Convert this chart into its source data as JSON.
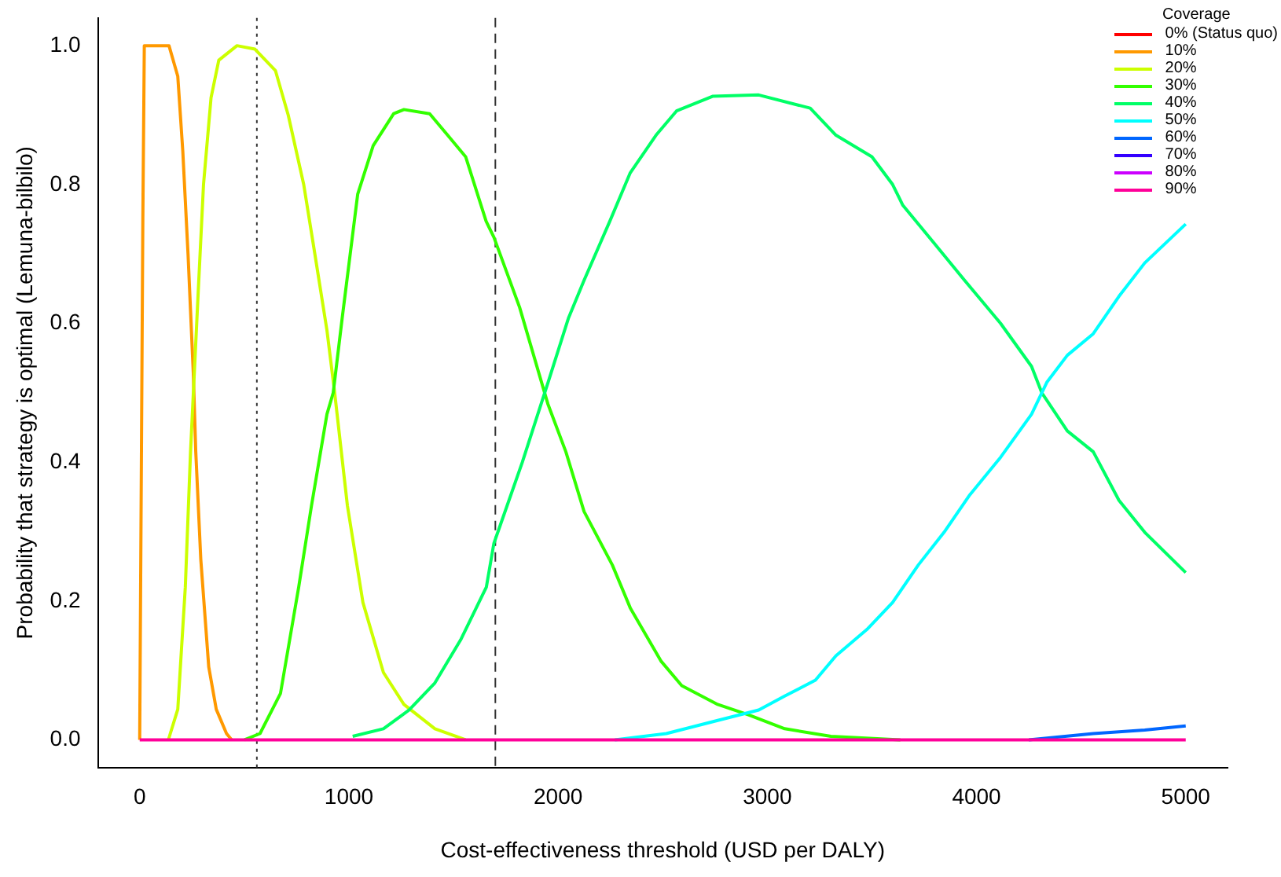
{
  "chart_data": {
    "type": "line",
    "xlabel": "Cost-effectiveness threshold (USD per DALY)",
    "ylabel": "Probability that strategy is optimal (Lemuna-bilbilo)",
    "legend_title": "Coverage",
    "legend": "top right",
    "grid": false,
    "marker": "none",
    "line_style": "solid",
    "xlim": [
      -200,
      5200
    ],
    "ylim": [
      -0.04,
      1.04
    ],
    "xticks": [
      0,
      1000,
      2000,
      3000,
      4000,
      5000
    ],
    "yticks": [
      {
        "value": 0,
        "label": "0.0"
      },
      {
        "value": 0.2,
        "label": "0.2"
      },
      {
        "value": 0.4,
        "label": "0.4"
      },
      {
        "value": 0.6,
        "label": "0.6"
      },
      {
        "value": 0.8,
        "label": "0.8"
      },
      {
        "value": 1,
        "label": "1.0"
      }
    ],
    "ref_lines": [
      {
        "axis": "x",
        "value": 560,
        "color": "#333333",
        "line_style": "dotted"
      },
      {
        "axis": "x",
        "value": 1700,
        "color": "#333333",
        "line_style": "dashed"
      }
    ],
    "series": [
      {
        "name": "0% (Status quo)",
        "color": "#ff0000",
        "values": [
          null
        ]
      },
      {
        "name": "10%",
        "color": "#ff9900",
        "x": [
          0,
          5,
          15,
          22,
          140,
          182,
          206,
          231,
          256,
          268,
          292,
          330,
          366,
          415,
          440
        ],
        "values": [
          0,
          0.25,
          0.75,
          1.0,
          1.0,
          0.956,
          0.848,
          0.7,
          0.53,
          0.415,
          0.26,
          0.105,
          0.044,
          0.009,
          0
        ]
      },
      {
        "name": "20%",
        "color": "#ccff00",
        "x": [
          137,
          182,
          218,
          243,
          280,
          305,
          341,
          378,
          465,
          551,
          649,
          710,
          784,
          833,
          895,
          932,
          993,
          1067,
          1165,
          1263,
          1411,
          1558
        ],
        "values": [
          0,
          0.044,
          0.22,
          0.415,
          0.647,
          0.8,
          0.925,
          0.979,
          1.0,
          0.995,
          0.964,
          0.9,
          0.8,
          0.708,
          0.59,
          0.5,
          0.337,
          0.198,
          0.097,
          0.051,
          0.016,
          0
        ]
      },
      {
        "name": "30%",
        "color": "#33ff00",
        "x": [
          501,
          575,
          673,
          760,
          821,
          895,
          925,
          968,
          1042,
          1116,
          1214,
          1263,
          1386,
          1472,
          1558,
          1656,
          1693,
          1816,
          1951,
          2037,
          2124,
          2259,
          2345,
          2493,
          2591,
          2763,
          2910,
          3083,
          3304,
          3636
        ],
        "values": [
          0,
          0.009,
          0.067,
          0.22,
          0.337,
          0.469,
          0.5,
          0.608,
          0.786,
          0.856,
          0.902,
          0.908,
          0.902,
          0.871,
          0.84,
          0.747,
          0.724,
          0.623,
          0.484,
          0.415,
          0.329,
          0.252,
          0.19,
          0.113,
          0.078,
          0.051,
          0.036,
          0.016,
          0.005,
          0
        ]
      },
      {
        "name": "40%",
        "color": "#00ff66",
        "x": [
          1018,
          1165,
          1288,
          1411,
          1534,
          1657,
          1693,
          1829,
          1952,
          2050,
          2124,
          2247,
          2345,
          2468,
          2566,
          2738,
          2959,
          3205,
          3328,
          3500,
          3599,
          3648,
          3796,
          3943,
          4115,
          4263,
          4312,
          4434,
          4558,
          4681,
          4804,
          5000
        ],
        "values": [
          0.005,
          0.016,
          0.043,
          0.082,
          0.144,
          0.22,
          0.283,
          0.4,
          0.515,
          0.608,
          0.662,
          0.747,
          0.817,
          0.871,
          0.906,
          0.927,
          0.929,
          0.91,
          0.871,
          0.84,
          0.8,
          0.77,
          0.716,
          0.662,
          0.6,
          0.538,
          0.5,
          0.445,
          0.415,
          0.345,
          0.299,
          0.241
        ]
      },
      {
        "name": "50%",
        "color": "#00ffff",
        "x": [
          2271,
          2517,
          2763,
          2959,
          3083,
          3230,
          3328,
          3476,
          3599,
          3722,
          3845,
          3968,
          4115,
          4263,
          4336,
          4434,
          4558,
          4681,
          4804,
          5000
        ],
        "values": [
          0,
          0.009,
          0.028,
          0.043,
          0.063,
          0.086,
          0.121,
          0.159,
          0.198,
          0.252,
          0.299,
          0.353,
          0.407,
          0.469,
          0.515,
          0.554,
          0.585,
          0.639,
          0.687,
          0.743
        ]
      },
      {
        "name": "60%",
        "color": "#0066ff",
        "x": [
          4250,
          4558,
          4804,
          5000
        ],
        "values": [
          0,
          0.009,
          0.014,
          0.02
        ]
      },
      {
        "name": "70%",
        "color": "#3300ff",
        "values": [
          null
        ]
      },
      {
        "name": "80%",
        "color": "#cc00ff",
        "values": [
          null
        ]
      },
      {
        "name": "90%",
        "color": "#ff0099",
        "x": [
          0,
          5000
        ],
        "values": [
          0,
          0
        ]
      }
    ]
  }
}
